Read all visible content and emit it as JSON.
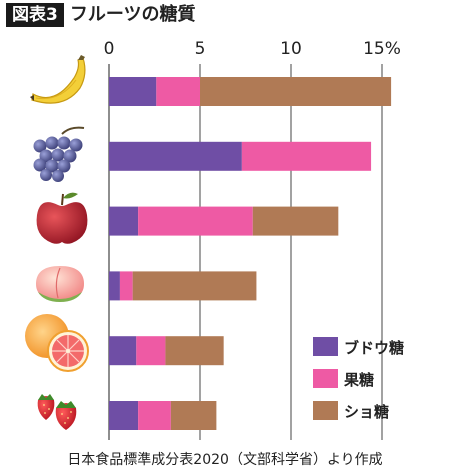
{
  "header": {
    "figure_label": "図表3",
    "title": "フルーツの糖質"
  },
  "source": "日本食品標準成分表2020（文部科学省）より作成",
  "colors": {
    "glucose": "#6f4ea5",
    "fructose": "#ee5aa4",
    "sucrose": "#b07a55",
    "grid": "#444444"
  },
  "chart_data": {
    "type": "bar",
    "orientation": "horizontal",
    "stacked": true,
    "title": "フルーツの糖質",
    "xlabel": "",
    "ylabel": "",
    "xlim": [
      0,
      16
    ],
    "x_ticks": [
      {
        "value": 0,
        "label": "0"
      },
      {
        "value": 5,
        "label": "5"
      },
      {
        "value": 10,
        "label": "10"
      },
      {
        "value": 15,
        "label": "15%"
      }
    ],
    "grid": true,
    "legend_position": "bottom-right",
    "categories": [
      "banana",
      "grape",
      "apple",
      "peach",
      "grapefruit",
      "strawberry"
    ],
    "category_icons": [
      "banana-icon",
      "grape-icon",
      "apple-icon",
      "peach-icon",
      "grapefruit-icon",
      "strawberry-icon"
    ],
    "series": [
      {
        "name": "ブドウ糖",
        "color": "#6f4ea5",
        "values": [
          2.6,
          7.3,
          1.6,
          0.6,
          1.5,
          1.6
        ]
      },
      {
        "name": "果糖",
        "color": "#ee5aa4",
        "values": [
          2.4,
          7.1,
          6.3,
          0.7,
          1.6,
          1.8
        ]
      },
      {
        "name": "ショ糖",
        "color": "#b07a55",
        "values": [
          10.5,
          0.0,
          4.7,
          6.8,
          3.2,
          2.5
        ]
      }
    ]
  }
}
